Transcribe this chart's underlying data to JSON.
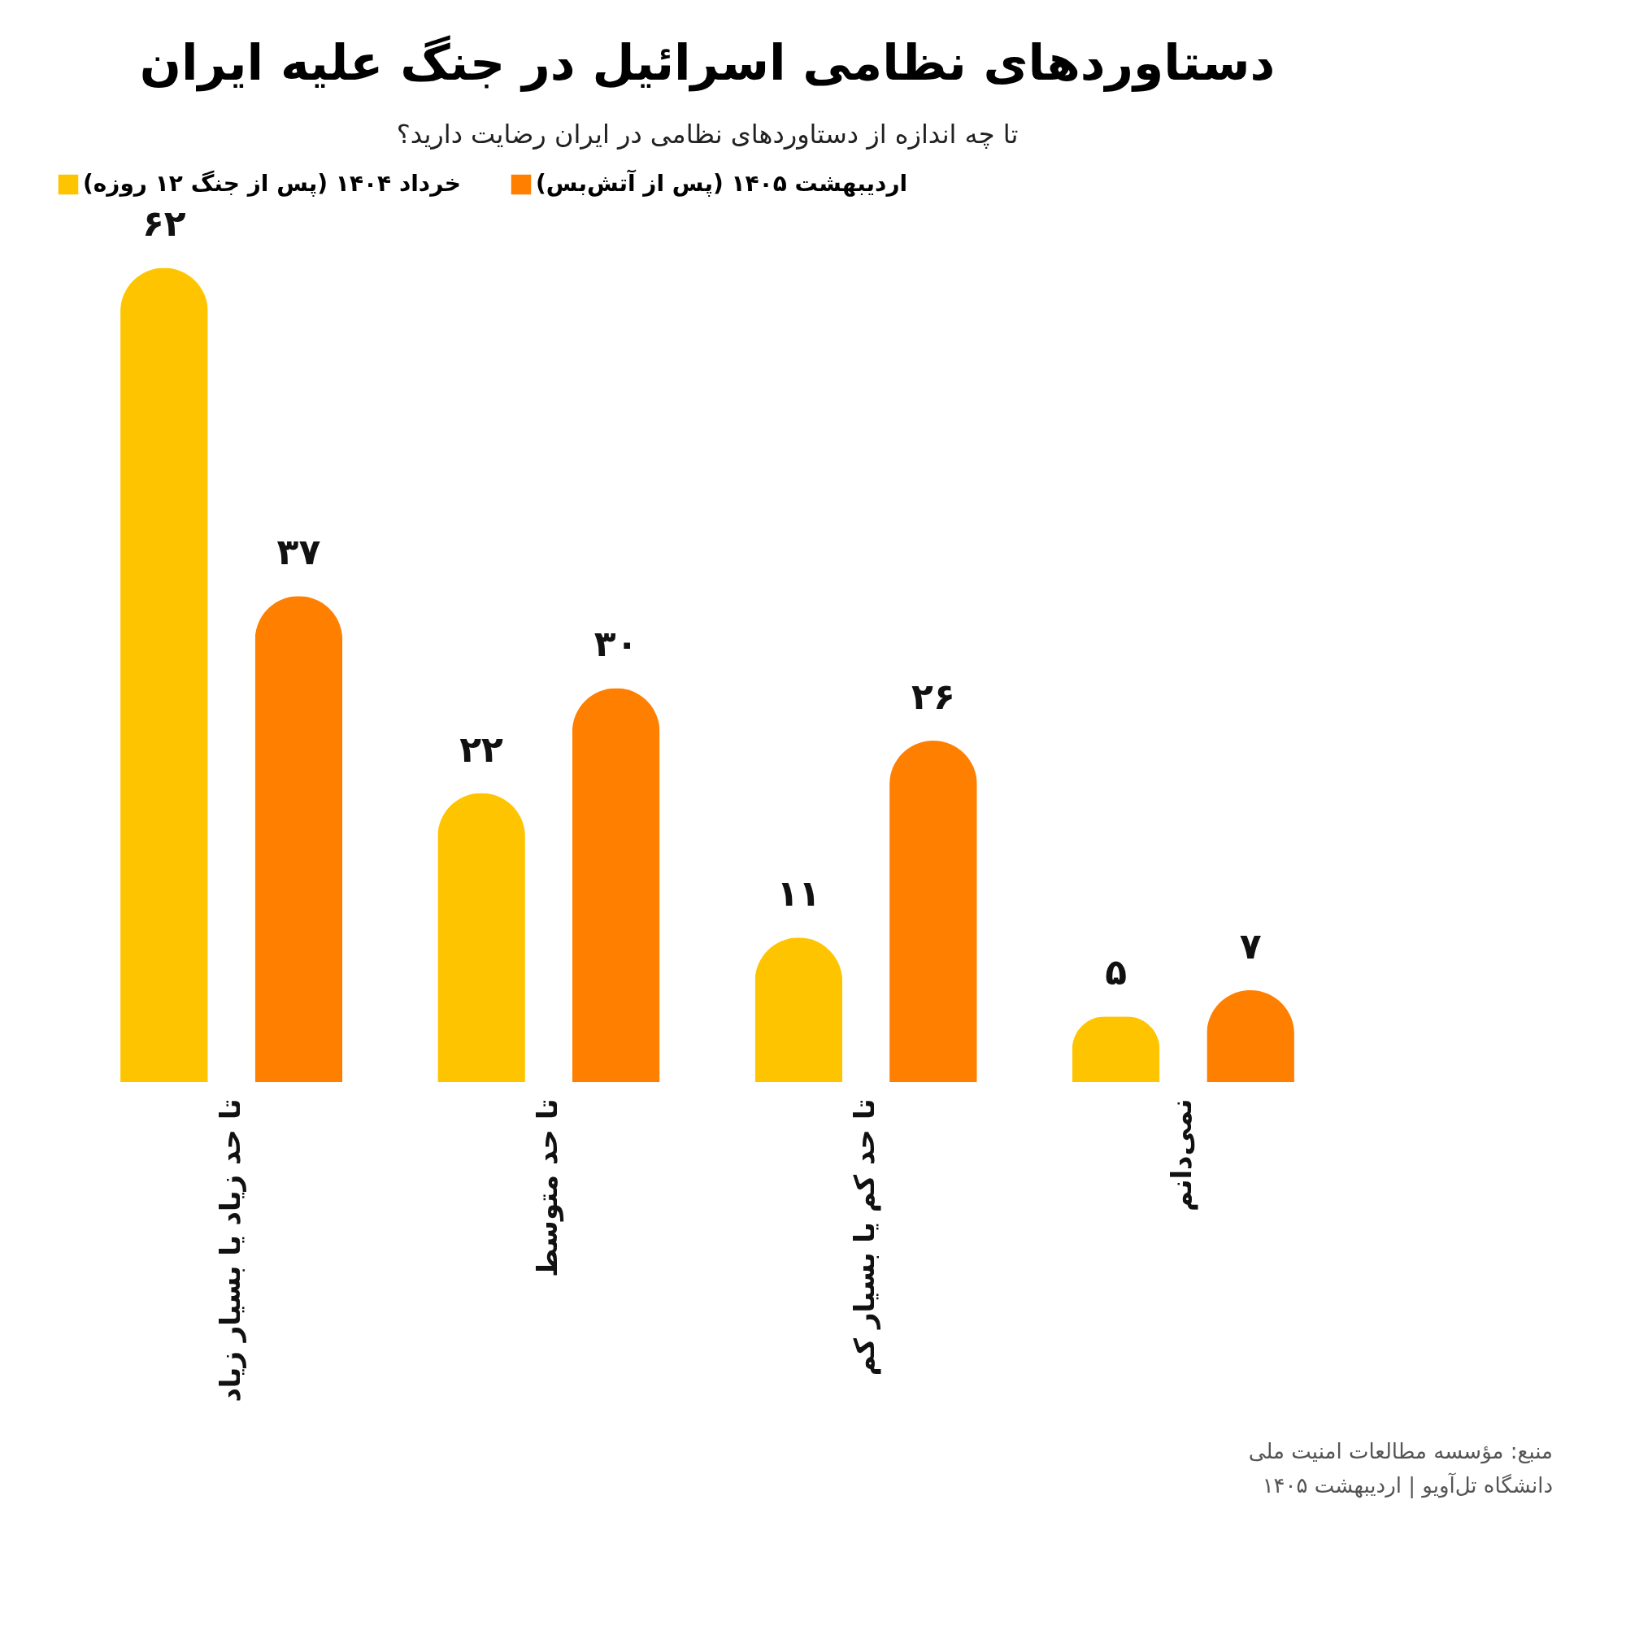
{
  "chart_data": {
    "type": "bar",
    "title": "دستاوردهای نظامی اسرائیل در جنگ علیه ایران",
    "subtitle": "تا چه اندازه از دستاوردهای نظامی در ایران رضایت دارید؟",
    "categories": [
      "تا حد زیاد یا بسیار زیاد",
      "تا حد متوسط",
      "تا حد کم یا بسیار کم",
      "نمی‌دانم"
    ],
    "series": [
      {
        "name": "خرداد ۱۴۰۴ (پس از جنگ ۱۲ روزه)",
        "color": "#ffc400",
        "values": [
          62,
          22,
          11,
          5
        ],
        "value_labels": [
          "۶۲",
          "۲۲",
          "۱۱",
          "۵"
        ]
      },
      {
        "name": "اردیبهشت ۱۴۰۵ (پس از آتش‌بس)",
        "color": "#ff7f00",
        "values": [
          37,
          30,
          26,
          7
        ],
        "value_labels": [
          "۳۷",
          "۳۰",
          "۲۶",
          "۷"
        ]
      }
    ],
    "legend": "top",
    "annotations": [
      "منبع: مؤسسه مطالعات امنیت ملی",
      "دانشگاه تل‌آویو | اردیبهشت ۱۴۰۵"
    ]
  }
}
